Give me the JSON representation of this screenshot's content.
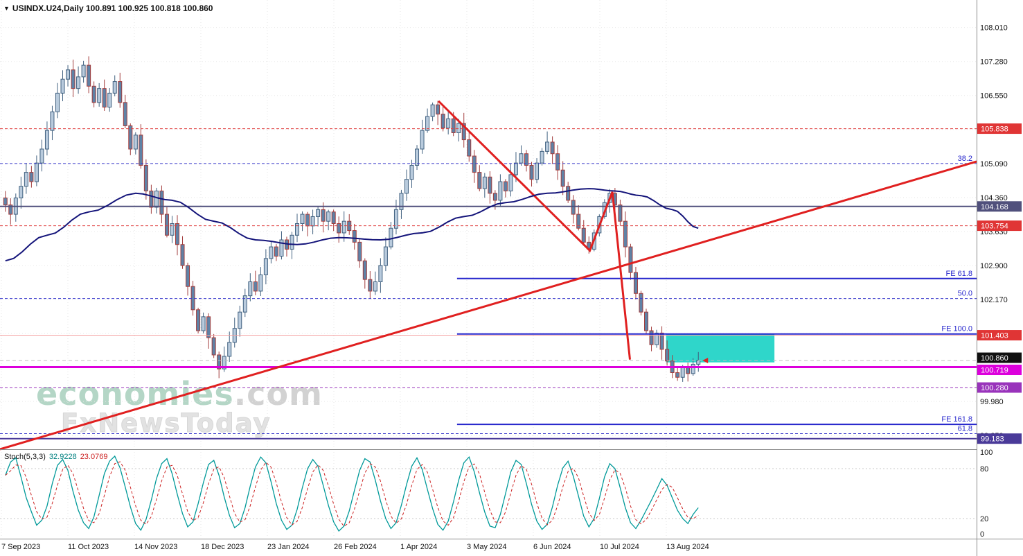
{
  "header": {
    "expand_icon": "▼",
    "symbol_line": "USINDX.U24,Daily",
    "ohlc": "100.891 100.925 100.818 100.860"
  },
  "watermark": {
    "brand_green": "economies",
    "brand_gray": ".com",
    "subbrand": "FxNewsToday"
  },
  "stoch_header": {
    "name": "Stoch(5,3,3)",
    "main_value": "32.9228",
    "signal_value": "23.0769"
  },
  "chart_data": [
    {
      "type": "candlestick",
      "title": "USINDX.U24,Daily",
      "ohlc_current": {
        "open": 100.891,
        "high": 100.925,
        "low": 100.818,
        "close": 100.86
      },
      "y_range": [
        99.0,
        108.6
      ],
      "grid": {
        "start": 99.25,
        "step": 0.73
      },
      "x_axis_labels": [
        "7 Sep 2023",
        "11 Oct 2023",
        "14 Nov 2023",
        "18 Dec 2023",
        "23 Jan 2024",
        "26 Feb 2024",
        "1 Apr 2024",
        "3 May 2024",
        "6 Jun 2024",
        "10 Jul 2024",
        "13 Aug 2024"
      ],
      "y_axis_ticks": [
        "108.010",
        "107.280",
        "106.550",
        "105.090",
        "104.360",
        "103.630",
        "102.900",
        "102.170",
        "99.980",
        "99.250"
      ],
      "first_open": 104.35,
      "closes": [
        104.2,
        104.0,
        104.35,
        104.6,
        104.9,
        104.7,
        105.1,
        105.4,
        105.8,
        106.2,
        106.6,
        106.9,
        107.1,
        106.7,
        106.95,
        107.2,
        106.75,
        106.4,
        106.7,
        106.3,
        106.6,
        106.85,
        106.4,
        105.9,
        105.4,
        105.7,
        105.05,
        104.5,
        104.15,
        104.5,
        104.0,
        103.55,
        103.8,
        103.35,
        102.9,
        102.45,
        101.95,
        101.5,
        101.8,
        101.35,
        100.98,
        100.68,
        100.95,
        101.25,
        101.55,
        101.9,
        102.25,
        102.55,
        102.35,
        102.7,
        103.05,
        103.3,
        103.1,
        103.45,
        103.25,
        103.55,
        103.8,
        104.0,
        103.75,
        103.95,
        104.1,
        103.85,
        104.05,
        103.8,
        103.6,
        103.85,
        103.65,
        103.4,
        103.0,
        102.6,
        102.35,
        102.55,
        102.9,
        103.3,
        103.7,
        104.1,
        104.45,
        104.75,
        105.05,
        105.4,
        105.8,
        106.1,
        106.35,
        106.15,
        105.85,
        106.05,
        105.75,
        105.95,
        105.6,
        105.25,
        104.9,
        104.55,
        104.8,
        104.45,
        104.3,
        104.7,
        104.5,
        104.85,
        105.1,
        105.3,
        105.05,
        104.75,
        105.1,
        105.35,
        105.55,
        105.3,
        104.95,
        104.6,
        104.3,
        104.0,
        103.7,
        103.4,
        103.25,
        103.6,
        103.95,
        104.25,
        104.45,
        104.2,
        103.85,
        103.3,
        102.75,
        102.3,
        101.9,
        101.5,
        101.2,
        101.45,
        101.1,
        100.85,
        100.6,
        100.5,
        100.72,
        100.58,
        100.78,
        100.86
      ],
      "candle_colors": {
        "up_fill": "#b9cbdd",
        "up_stroke": "#40607f",
        "down_fill": "#5f82a6",
        "down_stroke": "#a23c3c"
      },
      "ma": {
        "name": "moving-average",
        "color": "#14147a",
        "w": 2,
        "anchors": [
          [
            0,
            103.0
          ],
          [
            8,
            103.55
          ],
          [
            16,
            104.05
          ],
          [
            25,
            104.45
          ],
          [
            32,
            104.3
          ],
          [
            40,
            103.85
          ],
          [
            48,
            103.45
          ],
          [
            56,
            103.35
          ],
          [
            64,
            103.5
          ],
          [
            72,
            103.45
          ],
          [
            80,
            103.6
          ],
          [
            88,
            103.95
          ],
          [
            96,
            104.25
          ],
          [
            104,
            104.45
          ],
          [
            112,
            104.55
          ],
          [
            117,
            104.5
          ],
          [
            122,
            104.4
          ],
          [
            128,
            104.1
          ],
          [
            133,
            103.7
          ]
        ]
      },
      "levels": [
        {
          "price": 105.838,
          "color": "#e04040",
          "dash": "4,3",
          "w": 1,
          "from": 0,
          "to": 1
        },
        {
          "price": 105.09,
          "color": "#3a3acc",
          "dash": "4,3",
          "w": 1,
          "from": 0,
          "to": 1,
          "label": "38.2"
        },
        {
          "price": 104.168,
          "color": "#50507c",
          "dash": null,
          "w": 2,
          "from": 0,
          "to": 1
        },
        {
          "price": 103.754,
          "color": "#e04040",
          "dash": "4,3",
          "w": 1,
          "from": 0,
          "to": 1
        },
        {
          "price": 102.62,
          "color": "#2626cc",
          "dash": null,
          "w": 2,
          "from": 0.468,
          "to": 1,
          "label": "FE 61.8"
        },
        {
          "price": 102.19,
          "color": "#3a3acc",
          "dash": "4,3",
          "w": 1,
          "from": 0,
          "to": 1,
          "label": "50.0"
        },
        {
          "price": 101.43,
          "color": "#2626cc",
          "dash": null,
          "w": 2,
          "from": 0.468,
          "to": 1,
          "label": "FE 100.0"
        },
        {
          "price": 101.403,
          "color": "#f4a0a0",
          "dash": null,
          "w": 1,
          "from": 0,
          "to": 1
        },
        {
          "price": 100.86,
          "color": "#bdbdbd",
          "dash": "5,4",
          "w": 1,
          "from": 0,
          "to": 1
        },
        {
          "price": 100.719,
          "color": "#dc00dc",
          "dash": null,
          "w": 3,
          "from": 0,
          "to": 1
        },
        {
          "price": 100.28,
          "color": "#9933bb",
          "dash": "4,3",
          "w": 1,
          "from": 0,
          "to": 1
        },
        {
          "price": 99.49,
          "color": "#2626cc",
          "dash": null,
          "w": 2,
          "from": 0.468,
          "to": 1,
          "label": "FE 161.8"
        },
        {
          "price": 99.29,
          "color": "#3a3acc",
          "dash": "4,3",
          "w": 1,
          "from": 0,
          "to": 1,
          "label": "61.8"
        },
        {
          "price": 99.183,
          "color": "#4a3a99",
          "dash": null,
          "w": 2,
          "from": 0,
          "to": 1
        }
      ],
      "trend_lines": [
        {
          "name": "ascending-trendline",
          "color": "#e02020",
          "w": 3,
          "points": [
            [
              0.0,
              98.955
            ],
            [
              1.0,
              105.132
            ]
          ]
        },
        {
          "name": "corrective-zigzag",
          "color": "#e02020",
          "w": 3,
          "points": [
            [
              0.449,
              106.43
            ],
            [
              0.604,
              103.22
            ],
            [
              0.627,
              104.48
            ],
            [
              0.645,
              100.88
            ]
          ]
        }
      ],
      "rectangle": {
        "x0": 0.682,
        "x1": 0.793,
        "top": 101.42,
        "bottom": 100.82,
        "color": "#2fd6ca"
      },
      "badges": [
        {
          "label": "105.838",
          "price": 105.838,
          "bg": "#e03535",
          "dy": 0
        },
        {
          "label": "104.168",
          "price": 104.168,
          "bg": "#50507c",
          "dy": 0
        },
        {
          "label": "103.754",
          "price": 103.754,
          "bg": "#e03535",
          "dy": 0
        },
        {
          "label": "101.403",
          "price": 101.403,
          "bg": "#e03535",
          "dy": 0
        },
        {
          "label": "100.860",
          "price": 100.86,
          "bg": "#101010",
          "dy": -4
        },
        {
          "label": "100.719",
          "price": 100.719,
          "bg": "#dc00dc",
          "dy": 4
        },
        {
          "label": "100.280",
          "price": 100.28,
          "bg": "#9933bb",
          "dy": 0
        },
        {
          "label": "99.183",
          "price": 99.183,
          "bg": "#4a3a99",
          "dy": 0
        }
      ]
    },
    {
      "type": "line",
      "name": "Stoch(5,3,3)",
      "displayed_values": "32.9228 23.0769",
      "y_range": [
        0,
        100
      ],
      "y_ticks": [
        100,
        80,
        20,
        0
      ],
      "levels": [
        80,
        20
      ],
      "main_color": "#009999",
      "signal_color": "#cc2222",
      "main": [
        72,
        88,
        93,
        70,
        45,
        28,
        12,
        18,
        35,
        62,
        84,
        91,
        78,
        52,
        30,
        15,
        8,
        22,
        48,
        74,
        89,
        95,
        81,
        58,
        34,
        14,
        6,
        19,
        42,
        68,
        86,
        92,
        74,
        49,
        26,
        10,
        16,
        38,
        63,
        85,
        90,
        72,
        46,
        24,
        9,
        14,
        33,
        59,
        82,
        94,
        87,
        64,
        38,
        18,
        7,
        12,
        31,
        57,
        80,
        91,
        83,
        60,
        36,
        16,
        5,
        11,
        29,
        54,
        78,
        92,
        88,
        66,
        41,
        20,
        8,
        15,
        36,
        61,
        83,
        93,
        79,
        55,
        32,
        13,
        6,
        17,
        40,
        66,
        87,
        94,
        76,
        51,
        28,
        11,
        9,
        25,
        50,
        76,
        90,
        85,
        62,
        37,
        17,
        7,
        13,
        34,
        60,
        81,
        89,
        71,
        47,
        23,
        10,
        20,
        44,
        70,
        86,
        80,
        57,
        33,
        15,
        8,
        18,
        30,
        42,
        55,
        68,
        60,
        45,
        30,
        20,
        14,
        25,
        33
      ]
    }
  ]
}
